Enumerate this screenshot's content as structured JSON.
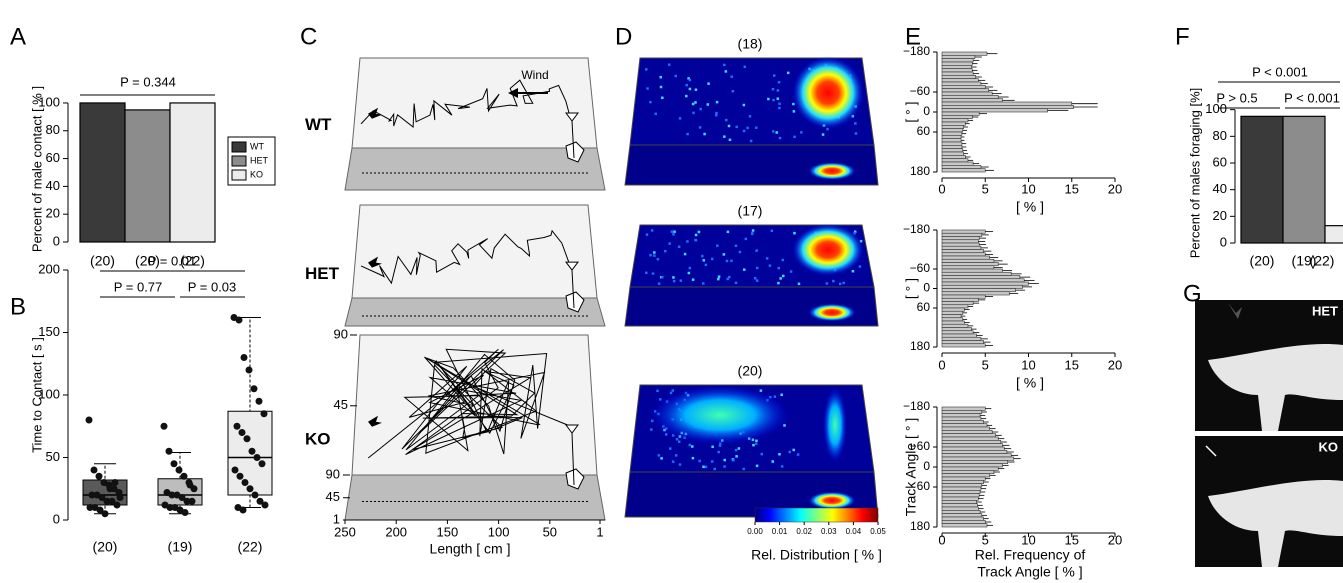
{
  "chart_data": [
    {
      "type": "bar",
      "panel": "A",
      "categories": [
        "(20)",
        "(20)",
        "(22)"
      ],
      "values": [
        100,
        95,
        100
      ],
      "colors": [
        "#3a3a3a",
        "#8c8c8c",
        "#ececec"
      ],
      "legend": [
        "WT",
        "HET",
        "KO"
      ],
      "ylabel": "Percent of male contact [ % ]",
      "ylim": [
        0,
        105
      ],
      "yticks": [
        0,
        20,
        40,
        60,
        80,
        100
      ],
      "annotations": [
        "P = 0.344"
      ]
    },
    {
      "type": "box",
      "panel": "B",
      "categories": [
        "(20)",
        "(19)",
        "(22)"
      ],
      "colors": [
        "#5a5a5a",
        "#bdbdbd",
        "#ececec"
      ],
      "boxes": [
        {
          "min": 5,
          "q1": 12,
          "median": 20,
          "q3": 32,
          "max": 45,
          "points": [
            80,
            40,
            35,
            30,
            28,
            25,
            22,
            20,
            20,
            18,
            15,
            15,
            12,
            10,
            10,
            8,
            5,
            25,
            30,
            18
          ]
        },
        {
          "min": 5,
          "q1": 12,
          "median": 20,
          "q3": 33,
          "max": 54,
          "points": [
            75,
            55,
            45,
            40,
            35,
            30,
            25,
            22,
            20,
            20,
            18,
            15,
            15,
            12,
            10,
            10,
            8,
            6,
            28
          ]
        },
        {
          "min": 10,
          "q1": 20,
          "median": 50,
          "q3": 87,
          "max": 162,
          "points": [
            162,
            160,
            130,
            120,
            105,
            95,
            85,
            75,
            70,
            65,
            55,
            50,
            45,
            40,
            35,
            30,
            25,
            20,
            15,
            12,
            10,
            8
          ]
        }
      ],
      "ylabel": "Time to Contact [ s ]",
      "ylim": [
        0,
        200
      ],
      "yticks": [
        0,
        50,
        100,
        150,
        200
      ],
      "annotations": [
        "P = 0.01",
        "P = 0.77",
        "P = 0.03"
      ]
    },
    {
      "type": "trajectory",
      "panel": "C",
      "rows": [
        "WT",
        "HET",
        "KO"
      ],
      "wind": "Wind",
      "xlabel": "Length [ cm ]",
      "xlim": [
        250,
        1
      ],
      "xticks": [
        250,
        200,
        150,
        100,
        50,
        1
      ],
      "ylim": [
        1,
        90
      ],
      "yticks": [
        90,
        45
      ],
      "floor_lim": [
        90,
        1
      ],
      "floor_ticks": [
        90,
        45,
        1
      ]
    },
    {
      "type": "heatmap",
      "panel": "D",
      "titles": [
        "(18)",
        "(17)",
        "(20)"
      ],
      "clim": [
        0,
        0.05
      ],
      "cticks": [
        {
          "value": 0,
          "label": "0.00"
        },
        {
          "value": 0.01,
          "label": "0.01"
        },
        {
          "value": 0.02,
          "label": "0.02"
        },
        {
          "value": 0.03,
          "label": "0.03"
        },
        {
          "value": 0.04,
          "label": "0.04"
        },
        {
          "value": 0.05,
          "label": "0.05"
        }
      ],
      "colorbar_label": "Rel. Distribution [ % ]"
    },
    {
      "type": "histogram",
      "panel": "E",
      "color": "#c8c8c8",
      "bins": [
        -180,
        -170,
        -160,
        -150,
        -140,
        -130,
        -120,
        -110,
        -100,
        -90,
        -80,
        -70,
        -60,
        -50,
        -40,
        -30,
        -20,
        -10,
        0,
        10,
        20,
        30,
        40,
        50,
        60,
        70,
        80,
        90,
        100,
        110,
        120,
        130,
        140,
        150,
        160,
        170,
        180
      ],
      "xlim": [
        0,
        20
      ],
      "xticks": [
        0,
        5,
        10,
        15,
        20
      ],
      "ylim": [
        -180,
        180
      ],
      "yticks": [
        {
          "value": -180,
          "label": "−180"
        },
        {
          "value": -60,
          "label": "−60"
        },
        0,
        60,
        180
      ],
      "series": [
        {
          "values": [
            5.2,
            3.8,
            3.6,
            3.5,
            3.4,
            3.5,
            3.6,
            3.9,
            4.2,
            4.5,
            5.0,
            5.4,
            5.8,
            6.5,
            7.0,
            15.0,
            15.2,
            12.2,
            4.3,
            3.5,
            3.0,
            2.7,
            2.5,
            2.4,
            2.3,
            2.2,
            2.2,
            2.3,
            2.3,
            2.4,
            2.5,
            2.7,
            3.0,
            3.6,
            4.5,
            5.0
          ],
          "errors": [
            1.2,
            0.8,
            0.7,
            0.6,
            0.6,
            0.6,
            0.7,
            0.7,
            0.8,
            0.8,
            0.9,
            1.0,
            1.1,
            1.2,
            1.4,
            3.0,
            2.8,
            2.4,
            0.9,
            0.7,
            0.6,
            0.5,
            0.5,
            0.5,
            0.5,
            0.4,
            0.4,
            0.5,
            0.5,
            0.5,
            0.5,
            0.6,
            0.6,
            0.7,
            0.9,
            1.0
          ],
          "xlabel": [
            "[ % ]"
          ],
          "ylabel": "[ ° ]"
        },
        {
          "values": [
            5.0,
            4.6,
            4.3,
            4.2,
            4.3,
            4.5,
            4.8,
            5.0,
            5.5,
            6.0,
            6.5,
            6.0,
            7.0,
            8.0,
            9.0,
            9.5,
            10.0,
            9.3,
            8.5,
            7.8,
            5.0,
            4.2,
            3.6,
            3.0,
            2.6,
            2.4,
            2.2,
            2.4,
            2.6,
            3.0,
            3.4,
            3.6,
            4.0,
            4.5,
            4.8,
            5.0
          ],
          "errors": [
            0.9,
            0.8,
            0.8,
            0.8,
            0.8,
            0.8,
            0.9,
            0.9,
            1.0,
            1.0,
            1.1,
            1.0,
            1.1,
            1.2,
            1.2,
            1.2,
            1.2,
            1.1,
            1.1,
            1.0,
            0.9,
            0.8,
            0.7,
            0.6,
            0.6,
            0.5,
            0.5,
            0.5,
            0.6,
            0.6,
            0.6,
            0.7,
            0.7,
            0.8,
            0.8,
            0.9
          ],
          "xlabel": [
            "[ % ]"
          ],
          "ylabel": "[ ° ]"
        },
        {
          "values": [
            5.0,
            4.6,
            4.4,
            4.5,
            4.8,
            5.2,
            5.5,
            5.8,
            6.2,
            6.5,
            6.8,
            7.0,
            7.2,
            7.5,
            8.0,
            8.3,
            7.6,
            7.0,
            6.5,
            6.0,
            5.5,
            5.0,
            4.8,
            4.6,
            4.5,
            4.4,
            4.3,
            4.2,
            4.0,
            4.1,
            4.2,
            4.4,
            4.6,
            4.8,
            5.0,
            5.2
          ],
          "errors": [
            0.7,
            0.6,
            0.6,
            0.6,
            0.6,
            0.6,
            0.7,
            0.7,
            0.7,
            0.7,
            0.7,
            0.8,
            0.8,
            0.8,
            0.8,
            0.8,
            0.8,
            0.7,
            0.7,
            0.7,
            0.7,
            0.6,
            0.6,
            0.6,
            0.6,
            0.6,
            0.6,
            0.6,
            0.6,
            0.6,
            0.6,
            0.6,
            0.6,
            0.6,
            0.7,
            0.7
          ],
          "xlabel": [
            "Rel. Frequency of",
            "Track Angle [ % ]"
          ],
          "ylabel": "Track Angle [ ° ]"
        }
      ]
    },
    {
      "type": "bar",
      "panel": "F",
      "categories": [
        "(20)",
        "(19)",
        "(22)"
      ],
      "values": [
        95,
        95,
        13
      ],
      "colors": [
        "#3a3a3a",
        "#8c8c8c",
        "#ececec"
      ],
      "ylabel": "Percent of males foraging [%]",
      "ylim": [
        0,
        105
      ],
      "yticks": [
        0,
        20,
        40,
        60,
        80,
        100
      ],
      "annotations": [
        "P < 0.001",
        "P > 0.5",
        "P < 0.001"
      ]
    },
    {
      "type": "photo",
      "panel": "G",
      "labels": [
        "HET",
        "KO"
      ]
    }
  ]
}
